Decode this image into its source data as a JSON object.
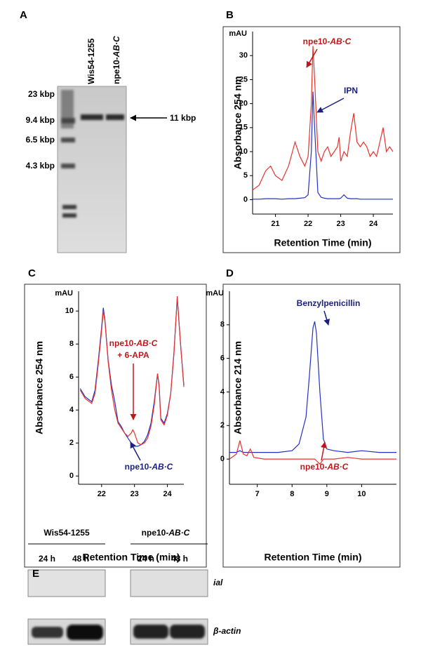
{
  "panel_labels": [
    "A",
    "B",
    "C",
    "D",
    "E"
  ],
  "gel": {
    "lanes": [
      [
        "Wis54-1255"
      ],
      [
        "npe10-",
        "AB·C"
      ]
    ],
    "markers": [
      "23 kbp",
      "9.4 kbp",
      "6.5 kbp",
      "4.3 kbp"
    ],
    "band_label": "11 kbp"
  },
  "chart_data": [
    {
      "type": "line",
      "y_unit": "mAU",
      "ylabel": "Absorbance 254 nm",
      "xlabel": "Retention Time (min)",
      "x": [
        20.3,
        20.5,
        20.7,
        20.85,
        21.0,
        21.2,
        21.4,
        21.6,
        21.75,
        21.9,
        22.0,
        22.1,
        22.15,
        22.2,
        22.3,
        22.4,
        22.5,
        22.6,
        22.7,
        22.8,
        22.9,
        22.95,
        23.0,
        23.1,
        23.2,
        23.3,
        23.4,
        23.5,
        23.6,
        23.7,
        23.8,
        23.9,
        24.0,
        24.1,
        24.2,
        24.3,
        24.4,
        24.5,
        24.6
      ],
      "xlim": [
        20.3,
        24.6
      ],
      "xticks": [
        21,
        22,
        23,
        24
      ],
      "ylim": [
        -3,
        35
      ],
      "yticks": [
        0,
        5,
        10,
        15,
        20,
        25,
        30
      ],
      "series": [
        {
          "color": "#e8322d",
          "values": [
            2,
            3,
            6,
            7,
            5,
            4,
            7,
            12,
            9,
            7,
            9,
            20,
            32,
            25,
            10,
            8,
            10,
            11,
            9,
            10,
            11,
            13,
            8,
            10,
            9,
            14,
            18,
            12,
            11,
            12,
            11,
            9,
            10,
            9,
            12,
            15,
            10,
            11,
            10
          ]
        },
        {
          "color": "#2231c8",
          "values": [
            0.1,
            0.1,
            0.2,
            0.2,
            0.2,
            0.1,
            0.2,
            0.2,
            0.3,
            0.4,
            1,
            10,
            22.5,
            15,
            1.5,
            0.5,
            0.3,
            0.2,
            0.2,
            0.2,
            0.2,
            0.2,
            0.3,
            1,
            0.3,
            0.2,
            0.2,
            0.2,
            0.1,
            0.1,
            0.1,
            0.1,
            0.1,
            0.1,
            0.1,
            0.1,
            0.1,
            0.1,
            0.1
          ]
        }
      ],
      "annotations": [
        {
          "parts": [
            "npe10-",
            "AB·C"
          ],
          "color": "#c0161a"
        },
        {
          "parts": [
            "IPN"
          ],
          "color": "#1a1f80"
        }
      ]
    },
    {
      "type": "line",
      "y_unit": "mAU",
      "ylabel": "Absorbance 254 nm",
      "xlabel": "Retention Time (min)",
      "x": [
        21.35,
        21.5,
        21.7,
        21.8,
        21.9,
        22.0,
        22.05,
        22.1,
        22.2,
        22.3,
        22.4,
        22.5,
        22.6,
        22.7,
        22.8,
        22.9,
        22.95,
        23.0,
        23.1,
        23.2,
        23.3,
        23.4,
        23.5,
        23.6,
        23.7,
        23.75,
        23.8,
        23.9,
        24.0,
        24.1,
        24.2,
        24.3,
        24.4,
        24.5
      ],
      "xlim": [
        21.3,
        24.5
      ],
      "xticks": [
        22,
        23,
        24
      ],
      "ylim": [
        -0.5,
        11.2
      ],
      "yticks": [
        0,
        2,
        4,
        6,
        8,
        10
      ],
      "series": [
        {
          "color": "#2231c8",
          "values": [
            5.3,
            4.8,
            4.5,
            5.2,
            7,
            9,
            10.2,
            9.5,
            7,
            5.5,
            4.5,
            3.3,
            3,
            2.6,
            2.3,
            2,
            1.9,
            1.8,
            1.8,
            1.9,
            2.1,
            2.5,
            3.2,
            4.5,
            6.2,
            5.5,
            3.5,
            3.2,
            3.8,
            5,
            7.5,
            10.8,
            8,
            5.5
          ]
        },
        {
          "color": "#e8322d",
          "values": [
            5.2,
            4.7,
            4.4,
            5,
            6.8,
            8.8,
            10,
            9.4,
            6.9,
            5.2,
            4,
            3.2,
            2.9,
            2.6,
            2.4,
            2.6,
            2.8,
            2.6,
            2,
            1.9,
            2,
            2.3,
            3,
            4.3,
            6.2,
            5.4,
            3.4,
            3.1,
            3.7,
            5,
            7.4,
            10.9,
            8,
            5.4
          ]
        }
      ],
      "annotations": [
        {
          "parts": [
            "npe10-",
            "AB·C",
            "+ 6-APA"
          ],
          "color": "#c0161a"
        },
        {
          "parts": [
            "npe10-",
            "AB·C"
          ],
          "color": "#1a1f80"
        }
      ]
    },
    {
      "type": "line",
      "y_unit": "mAU",
      "ylabel": "Absorbance 214 nm",
      "xlabel": "Retention Time (min)",
      "x": [
        6.2,
        6.4,
        6.5,
        6.6,
        6.7,
        6.8,
        6.9,
        7.2,
        7.6,
        8.0,
        8.2,
        8.4,
        8.5,
        8.6,
        8.65,
        8.7,
        8.8,
        8.9,
        9.0,
        9.2,
        9.6,
        10.0,
        10.5,
        11.0
      ],
      "xlim": [
        6.2,
        11.0
      ],
      "xticks": [
        7,
        8,
        9,
        10
      ],
      "ylim": [
        -1.5,
        10
      ],
      "yticks": [
        0,
        2,
        4,
        6,
        8
      ],
      "series": [
        {
          "color": "#2231c8",
          "values": [
            0.4,
            0.4,
            0.5,
            0.4,
            0.4,
            0.4,
            0.4,
            0.4,
            0.4,
            0.5,
            0.9,
            2.5,
            5,
            7.8,
            8.2,
            7.5,
            4,
            1.2,
            0.6,
            0.5,
            0.4,
            0.5,
            0.4,
            0.4
          ]
        },
        {
          "color": "#e8322d",
          "values": [
            0,
            0.3,
            1.1,
            0.3,
            0.2,
            0.6,
            0.1,
            0,
            0,
            0,
            0,
            0,
            0,
            0,
            0,
            -0.1,
            -0.3,
            0,
            0,
            0,
            0.1,
            0,
            0,
            0
          ]
        }
      ],
      "annotations": [
        {
          "parts": [
            "Benzylpenicillin"
          ],
          "color": "#1a1f80"
        },
        {
          "parts": [
            "npe10-",
            "AB·C"
          ],
          "color": "#c0161a"
        }
      ]
    }
  ],
  "western": {
    "groups": [
      {
        "name": [
          "Wis54-1255"
        ],
        "times": [
          "24 h",
          "48 h"
        ]
      },
      {
        "name": [
          "npe10-",
          "AB·C"
        ],
        "times": [
          "24 h",
          "48 h"
        ]
      }
    ],
    "rows": [
      "ial",
      "β-actin"
    ]
  }
}
